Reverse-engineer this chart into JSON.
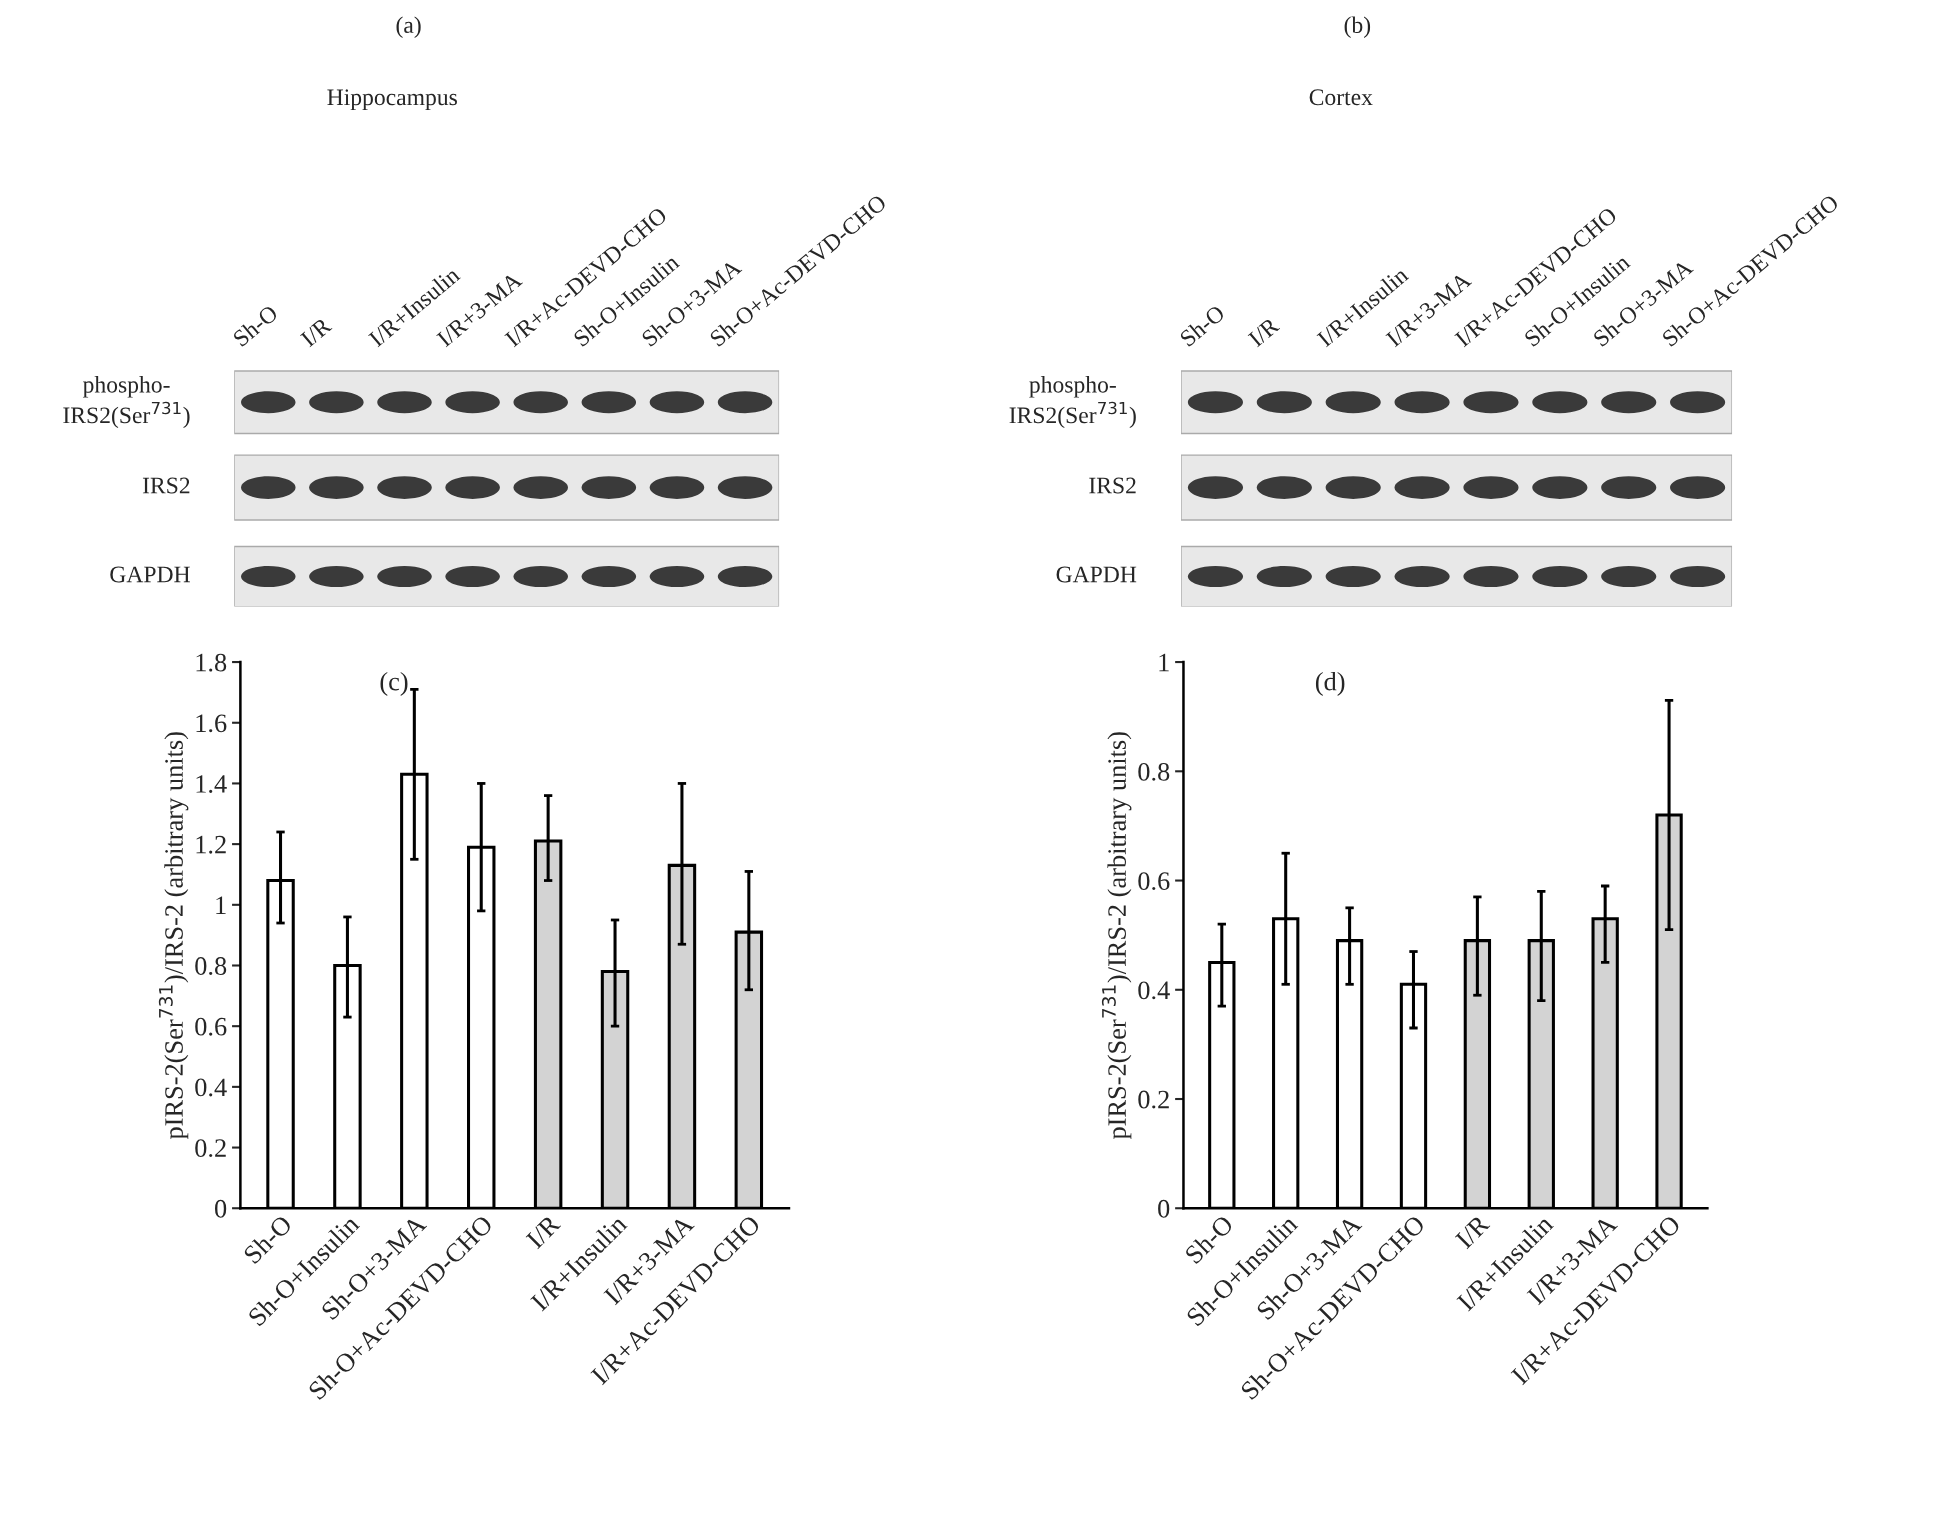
{
  "chart_data": [
    {
      "type": "other",
      "title": "(a)",
      "subtitle": "Hippocampus",
      "categories": [
        "Sh-O",
        "I/R",
        "I/R+Insulin",
        "I/R+3-MA",
        "I/R+Ac-DEVD-CHO",
        "Sh-O+Insulin",
        "Sh-O+3-MA",
        "Sh-O+Ac-DEVD-CHO"
      ],
      "annotations": [
        "phospho-\nIRS2(Ser$^{731}$)",
        "IRS2",
        "GAPDH"
      ]
    },
    {
      "type": "other",
      "title": "(b)",
      "subtitle": "Cortex",
      "categories": [
        "Sh-O",
        "I/R",
        "I/R+Insulin",
        "I/R+3-MA",
        "I/R+Ac-DEVD-CHO",
        "Sh-O+Insulin",
        "Sh-O+3-MA",
        "Sh-O+Ac-DEVD-CHO"
      ],
      "annotations": [
        "phospho-\nIRS2(Ser$^{731}$)",
        "IRS2",
        "GAPDH"
      ]
    },
    {
      "type": "bar",
      "title": "(c)",
      "ylabel": "pIRS-2(Ser$^{731}$)/IRS-2 (arbitrary units)",
      "categories": [
        "Sh-O",
        "Sh-O+Insulin",
        "Sh-O+3-MA",
        "Sh-O+Ac-DEVD-CHO",
        "I/R",
        "I/R+Insulin",
        "I/R+3-MA",
        "I/R+Ac-DEVD-CHO"
      ],
      "values": [
        1.08,
        0.8,
        1.43,
        1.19,
        1.21,
        0.78,
        1.13,
        0.91
      ],
      "errors": [
        [
          0.94,
          1.24
        ],
        [
          0.63,
          0.96
        ],
        [
          1.15,
          1.71
        ],
        [
          0.98,
          1.4
        ],
        [
          1.08,
          1.36
        ],
        [
          0.6,
          0.95
        ],
        [
          0.87,
          1.4
        ],
        [
          0.72,
          1.11
        ]
      ],
      "colors": [
        "#ffffff",
        "#ffffff",
        "#ffffff",
        "#ffffff",
        "#d3d3d3",
        "#d3d3d3",
        "#d3d3d3",
        "#d3d3d3"
      ],
      "ylim": [
        0,
        1.8
      ],
      "yticks": [
        0,
        0.2,
        0.4,
        0.6,
        0.8,
        1,
        1.2,
        1.4,
        1.6,
        1.8
      ],
      "grid": false,
      "legend": false
    },
    {
      "type": "bar",
      "title": "(d)",
      "ylabel": "pIRS-2(Ser$^{731}$)/IRS-2 (arbitrary units)",
      "categories": [
        "Sh-O",
        "Sh-O+Insulin",
        "Sh-O+3-MA",
        "Sh-O+Ac-DEVD-CHO",
        "I/R",
        "I/R+Insulin",
        "I/R+3-MA",
        "I/R+Ac-DEVD-CHO"
      ],
      "values": [
        0.45,
        0.53,
        0.49,
        0.41,
        0.49,
        0.49,
        0.53,
        0.72
      ],
      "errors": [
        [
          0.37,
          0.52
        ],
        [
          0.41,
          0.65
        ],
        [
          0.41,
          0.55
        ],
        [
          0.33,
          0.47
        ],
        [
          0.39,
          0.57
        ],
        [
          0.38,
          0.58
        ],
        [
          0.45,
          0.59
        ],
        [
          0.51,
          0.93
        ]
      ],
      "colors": [
        "#ffffff",
        "#ffffff",
        "#ffffff",
        "#ffffff",
        "#d3d3d3",
        "#d3d3d3",
        "#d3d3d3",
        "#d3d3d3"
      ],
      "ylim": [
        0,
        1
      ],
      "yticks": [
        0,
        0.2,
        0.4,
        0.6,
        0.8,
        1
      ],
      "grid": false,
      "legend": false
    }
  ]
}
